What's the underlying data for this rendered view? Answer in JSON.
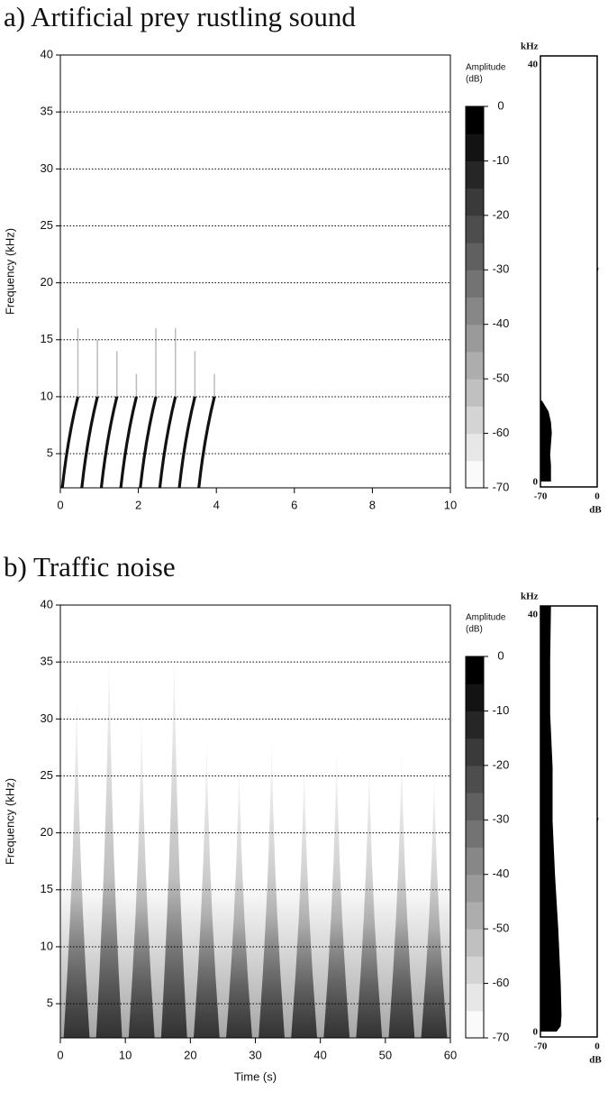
{
  "chart_data": [
    {
      "type": "spectrogram",
      "title": "a) Artificial prey rustling sound",
      "ylabel": "Frequency (kHz)",
      "xlim": [
        0,
        10
      ],
      "xticks": [
        0,
        2,
        4,
        6,
        8,
        10
      ],
      "ylim": [
        2,
        40
      ],
      "yticks": [
        5,
        10,
        15,
        20,
        25,
        30,
        35,
        40
      ],
      "grid": true,
      "sweeps": {
        "onsets": [
          0.05,
          0.55,
          1.05,
          1.55,
          2.05,
          2.55,
          3.05,
          3.55
        ],
        "duration": 0.4,
        "band": [
          2,
          10
        ],
        "peaks": [
          16,
          15,
          14,
          12,
          16,
          16,
          14,
          12
        ]
      },
      "colorbar": {
        "label": [
          "Amplitude",
          "(dB)"
        ],
        "lim": [
          -70,
          0
        ],
        "ticks": [
          0,
          -10,
          -20,
          -30,
          -40,
          -50,
          -60,
          -70
        ]
      },
      "spectrum": {
        "axis_label": "kHz",
        "value_label": "dB",
        "freq_ticks": [
          0,
          40
        ],
        "db_ticks": [
          -70,
          0
        ],
        "freq": [
          0.5,
          1,
          2,
          3,
          4,
          5,
          6,
          7,
          7.5,
          8
        ],
        "db": [
          -57,
          -57,
          -57,
          -58,
          -57,
          -56,
          -57,
          -60,
          -64,
          -68
        ]
      }
    },
    {
      "type": "spectrogram",
      "title": "b) Traffic noise",
      "xlabel": "Time (s)",
      "ylabel": "Frequency (kHz)",
      "xlim": [
        0,
        60
      ],
      "xticks": [
        0,
        10,
        20,
        30,
        40,
        50,
        60
      ],
      "ylim": [
        2,
        40
      ],
      "yticks": [
        5,
        10,
        15,
        20,
        25,
        30,
        35,
        40
      ],
      "grid": true,
      "pulses": {
        "centers": [
          2.5,
          7.5,
          12.5,
          17.5,
          22.5,
          27.5,
          32.5,
          37.5,
          42.5,
          47.5,
          52.5,
          57.5
        ],
        "peaks": [
          33,
          37,
          31,
          37,
          29,
          27,
          29,
          27,
          28,
          27,
          28,
          26
        ]
      },
      "colorbar": {
        "label": [
          "Amplitude",
          "(dB)"
        ],
        "lim": [
          -70,
          0
        ],
        "ticks": [
          0,
          -10,
          -20,
          -30,
          -40,
          -50,
          -60,
          -70
        ]
      },
      "spectrum": {
        "axis_label": "kHz",
        "value_label": "dB",
        "freq_ticks": [
          0,
          40
        ],
        "db_ticks": [
          -70,
          0
        ],
        "freq": [
          0.5,
          1,
          2,
          5,
          10,
          15,
          20,
          25,
          30,
          35,
          40
        ],
        "db": [
          -50,
          -45,
          -44,
          -45,
          -48,
          -52,
          -55,
          -55,
          -58,
          -58,
          -57
        ]
      }
    }
  ]
}
